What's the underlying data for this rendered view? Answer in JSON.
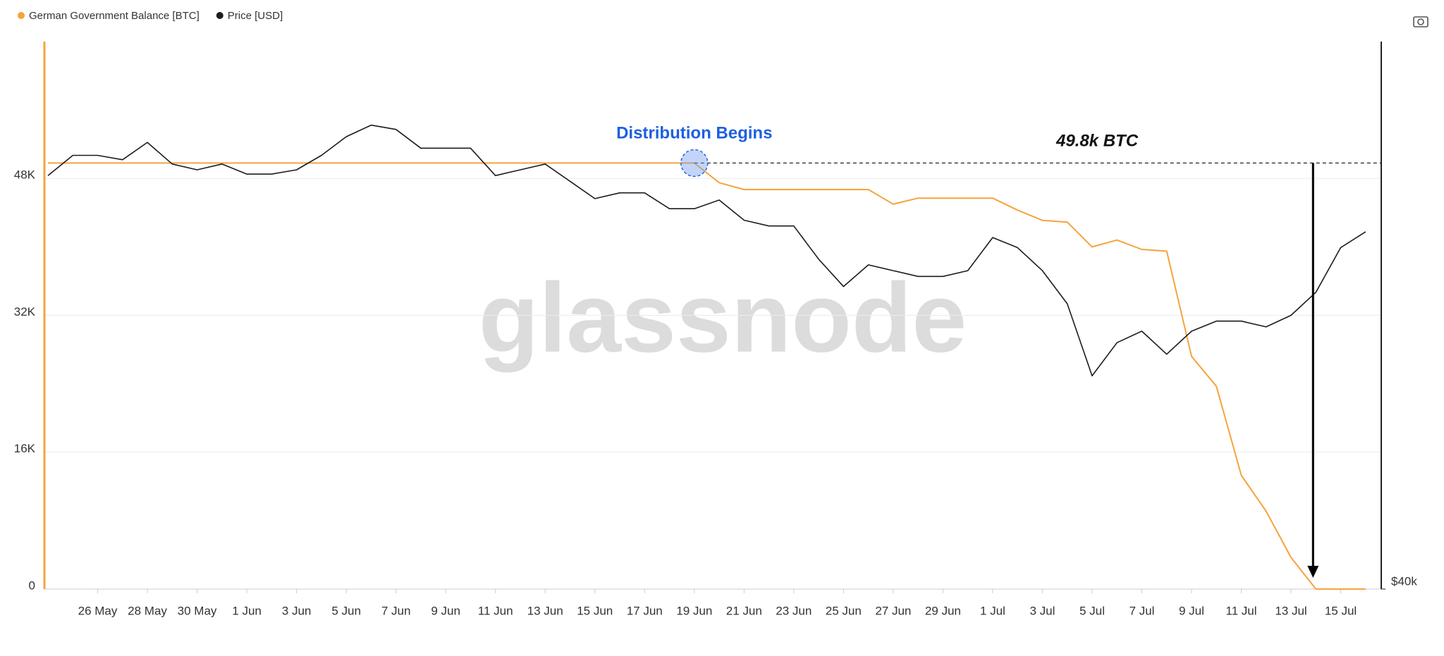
{
  "chart_data": {
    "type": "line",
    "x": [
      "24 May",
      "25 May",
      "26 May",
      "27 May",
      "28 May",
      "29 May",
      "30 May",
      "31 May",
      "1 Jun",
      "2 Jun",
      "3 Jun",
      "4 Jun",
      "5 Jun",
      "6 Jun",
      "7 Jun",
      "8 Jun",
      "9 Jun",
      "10 Jun",
      "11 Jun",
      "12 Jun",
      "13 Jun",
      "14 Jun",
      "15 Jun",
      "16 Jun",
      "17 Jun",
      "18 Jun",
      "19 Jun",
      "20 Jun",
      "21 Jun",
      "22 Jun",
      "23 Jun",
      "24 Jun",
      "25 Jun",
      "26 Jun",
      "27 Jun",
      "28 Jun",
      "29 Jun",
      "30 Jun",
      "1 Jul",
      "2 Jul",
      "3 Jul",
      "4 Jul",
      "5 Jul",
      "6 Jul",
      "7 Jul",
      "8 Jul",
      "9 Jul",
      "10 Jul",
      "11 Jul",
      "12 Jul",
      "13 Jul",
      "14 Jul",
      "15 Jul",
      "16 Jul"
    ],
    "series": [
      {
        "name": "German Government Balance [BTC]",
        "color": "#f5a33c",
        "axis": "y",
        "values": [
          49800,
          49800,
          49800,
          49800,
          49800,
          49800,
          49800,
          49800,
          49800,
          49800,
          49800,
          49800,
          49800,
          49800,
          49800,
          49800,
          49800,
          49800,
          49800,
          49800,
          49800,
          49800,
          49800,
          49800,
          49800,
          49800,
          49800,
          47500,
          46700,
          46700,
          46700,
          46700,
          46700,
          46700,
          45000,
          45700,
          45700,
          45700,
          45700,
          44300,
          43100,
          42900,
          40000,
          40800,
          39700,
          39500,
          27200,
          23700,
          13300,
          9100,
          3700,
          0,
          0,
          0
        ]
      },
      {
        "name": "Price [USD]",
        "color": "#1c1c1c",
        "axis": "y2",
        "values": [
          68700,
          70100,
          70100,
          69800,
          71000,
          69500,
          69100,
          69500,
          68800,
          68800,
          69100,
          70100,
          71400,
          72200,
          71900,
          70600,
          70600,
          70600,
          68700,
          69100,
          69500,
          68300,
          67100,
          67500,
          67500,
          66400,
          66400,
          67000,
          65600,
          65200,
          65200,
          62900,
          61000,
          62500,
          62100,
          61700,
          61700,
          62100,
          64400,
          63700,
          62100,
          59800,
          54800,
          57100,
          57900,
          56300,
          57900,
          58600,
          58600,
          58200,
          59000,
          60600,
          63700,
          64800
        ]
      }
    ],
    "xticks": [
      "26 May",
      "28 May",
      "30 May",
      "1 Jun",
      "3 Jun",
      "5 Jun",
      "7 Jun",
      "9 Jun",
      "11 Jun",
      "13 Jun",
      "15 Jun",
      "17 Jun",
      "19 Jun",
      "21 Jun",
      "23 Jun",
      "25 Jun",
      "27 Jun",
      "29 Jun",
      "1 Jul",
      "3 Jul",
      "5 Jul",
      "7 Jul",
      "9 Jul",
      "11 Jul",
      "13 Jul",
      "15 Jul"
    ],
    "ylim": [
      0,
      64000
    ],
    "yticks": [
      0,
      {
        "value": 16000,
        "label": "16K"
      },
      {
        "value": 32000,
        "label": "32K"
      },
      {
        "value": 48000,
        "label": "48K"
      }
    ],
    "y2lim": [
      40000,
      78000
    ],
    "y2ticks": [
      {
        "value": 40000,
        "label": "$40k"
      }
    ],
    "grid": true,
    "legend": "top-left",
    "annotations": [
      {
        "text": "Distribution Begins"
      },
      {
        "text": "49.8k BTC"
      }
    ],
    "watermark": "glassnode"
  }
}
